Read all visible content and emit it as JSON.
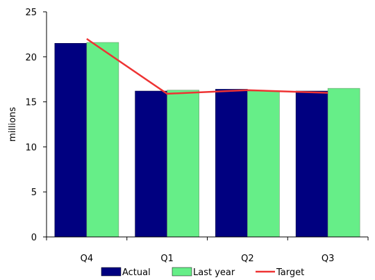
{
  "chart_data": {
    "type": "bar",
    "categories": [
      "Q4",
      "Q1",
      "Q2",
      "Q3"
    ],
    "series": [
      {
        "name": "Actual",
        "kind": "bar",
        "color": "#000080",
        "values": [
          21.5,
          16.2,
          16.4,
          16.2
        ]
      },
      {
        "name": "Last year",
        "kind": "bar",
        "color": "#66EE88",
        "values": [
          21.6,
          16.3,
          16.2,
          16.5
        ]
      },
      {
        "name": "Target",
        "kind": "line",
        "color": "#EE3333",
        "values": [
          22.0,
          15.9,
          16.3,
          16.0
        ]
      }
    ],
    "ylabel": "millions",
    "ylim": [
      0,
      25
    ],
    "yticks": [
      "0",
      "5",
      "10",
      "15",
      "20",
      "25"
    ],
    "ytick_values": [
      0,
      5,
      10,
      15,
      20,
      25
    ],
    "grid": false,
    "legend": "bottom"
  }
}
